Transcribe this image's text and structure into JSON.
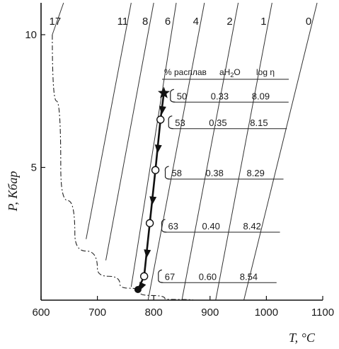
{
  "chart_data": {
    "type": "line",
    "title": "",
    "xlabel": "T, °C",
    "ylabel": "P, Кбар",
    "xlim": [
      600,
      1100
    ],
    "ylim": [
      0,
      11.2
    ],
    "x_ticks": [
      600,
      700,
      800,
      900,
      1000,
      1100
    ],
    "y_ticks": [
      5,
      10
    ],
    "grid": false,
    "isopleths": [
      {
        "label": "17",
        "p1": [
          620,
          10
        ],
        "p2": [
          640,
          11.2
        ]
      },
      {
        "label": "11",
        "p1": [
          680,
          2.3
        ],
        "p2": [
          760,
          11.2
        ]
      },
      {
        "label": "8",
        "p1": [
          715,
          1.5
        ],
        "p2": [
          800,
          11.2
        ]
      },
      {
        "label": "6",
        "p1": [
          760,
          0.5
        ],
        "p2": [
          840,
          11.2
        ]
      },
      {
        "label": "4",
        "p1": [
          790,
          0
        ],
        "p2": [
          890,
          11.2
        ]
      },
      {
        "label": "2",
        "p1": [
          850,
          0
        ],
        "p2": [
          950,
          11.2
        ]
      },
      {
        "label": "1",
        "p1": [
          910,
          0
        ],
        "p2": [
          1010,
          11.2
        ]
      },
      {
        "label": "0",
        "p1": [
          960,
          0
        ],
        "p2": [
          1090,
          11.2
        ]
      }
    ],
    "solidus": [
      [
        620,
        10
      ],
      [
        635,
        5
      ],
      [
        660,
        2.5
      ],
      [
        700,
        1.2
      ],
      [
        740,
        0.6
      ],
      [
        775,
        0.3
      ],
      [
        820,
        0.05
      ],
      [
        870,
        0
      ]
    ],
    "path_points": [
      {
        "T": 818,
        "P": 7.8,
        "marker": "star"
      },
      {
        "T": 812,
        "P": 6.8,
        "marker": "open-circle"
      },
      {
        "T": 803,
        "P": 4.9,
        "marker": "open-circle"
      },
      {
        "T": 793,
        "P": 2.9,
        "marker": "open-circle"
      },
      {
        "T": 783,
        "P": 0.9,
        "marker": "open-circle"
      },
      {
        "T": 772,
        "P": 0.4,
        "marker": "filled-circle"
      }
    ],
    "annotation_header": {
      "col1": "% расплав",
      "col2": "aH",
      "col2_sub": "2",
      "col2_end": "O",
      "col3": "log η"
    },
    "annotation_rows": [
      {
        "P": 7.7,
        "melt": "50",
        "aH2O": "0.33",
        "log_eta": "8.09"
      },
      {
        "P": 6.7,
        "melt": "53",
        "aH2O": "0.35",
        "log_eta": "8.15"
      },
      {
        "P": 4.8,
        "melt": "58",
        "aH2O": "0.38",
        "log_eta": "8.29"
      },
      {
        "P": 2.8,
        "melt": "63",
        "aH2O": "0.40",
        "log_eta": "8.42"
      },
      {
        "P": 0.9,
        "melt": "67",
        "aH2O": "0.60",
        "log_eta": "8.54"
      }
    ]
  }
}
